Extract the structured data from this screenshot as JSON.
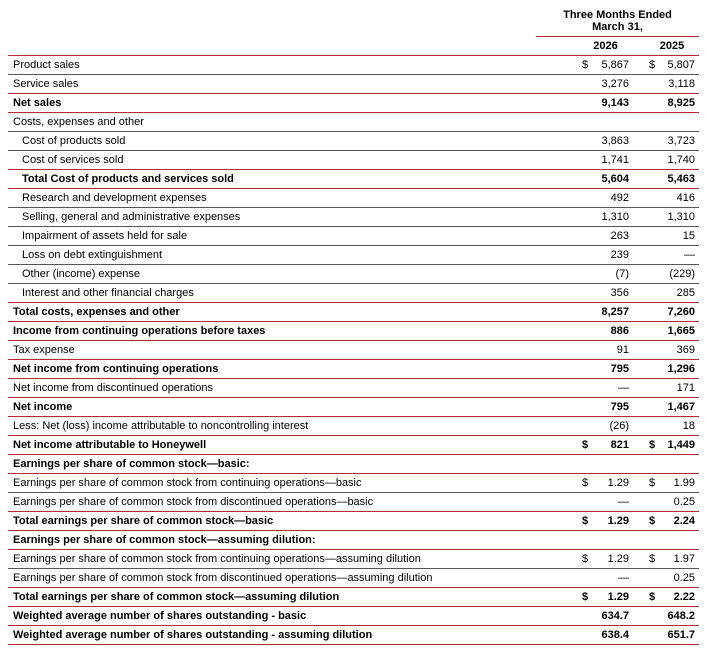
{
  "colors": {
    "accent_red": "#b22d30",
    "line_gray": "#55565a"
  },
  "header": {
    "period_line1": "Three Months Ended",
    "period_line2": "March 31,",
    "years": [
      "2026",
      "2025"
    ]
  },
  "rows": [
    {
      "label": "Product sales",
      "indent": false,
      "bold": false,
      "cur": "$",
      "v1": "5,867",
      "v2": "5,807",
      "border": "gray"
    },
    {
      "label": "Service sales",
      "indent": false,
      "bold": false,
      "cur": "",
      "v1": "3,276",
      "v2": "3,118",
      "border": "red"
    },
    {
      "label": "Net sales",
      "indent": false,
      "bold": true,
      "cur": "",
      "v1": "9,143",
      "v2": "8,925",
      "border": "red"
    },
    {
      "label": "Costs, expenses and other",
      "indent": false,
      "bold": false,
      "cur": "",
      "v1": "",
      "v2": "",
      "border": "gray"
    },
    {
      "label": "Cost of products sold",
      "indent": true,
      "bold": false,
      "cur": "",
      "v1": "3,863",
      "v2": "3,723",
      "border": "gray"
    },
    {
      "label": "Cost of services sold",
      "indent": true,
      "bold": false,
      "cur": "",
      "v1": "1,741",
      "v2": "1,740",
      "border": "red"
    },
    {
      "label": "Total Cost of products and services sold",
      "indent": true,
      "bold": true,
      "cur": "",
      "v1": "5,604",
      "v2": "5,463",
      "border": "red"
    },
    {
      "label": "Research and development expenses",
      "indent": true,
      "bold": false,
      "cur": "",
      "v1": "492",
      "v2": "416",
      "border": "gray"
    },
    {
      "label": "Selling, general and administrative expenses",
      "indent": true,
      "bold": false,
      "cur": "",
      "v1": "1,310",
      "v2": "1,310",
      "border": "gray"
    },
    {
      "label": "Impairment of assets held for sale",
      "indent": true,
      "bold": false,
      "cur": "",
      "v1": "263",
      "v2": "15",
      "border": "gray"
    },
    {
      "label": "Loss on debt extinguishment",
      "indent": true,
      "bold": false,
      "cur": "",
      "v1": "239",
      "v2": "—",
      "border": "gray"
    },
    {
      "label": "Other (income) expense",
      "indent": true,
      "bold": false,
      "cur": "",
      "v1": "(7)",
      "v2": "(229)",
      "border": "gray"
    },
    {
      "label": "Interest and other financial charges",
      "indent": true,
      "bold": false,
      "cur": "",
      "v1": "356",
      "v2": "285",
      "border": "red"
    },
    {
      "label": "Total costs, expenses and other",
      "indent": false,
      "bold": true,
      "cur": "",
      "v1": "8,257",
      "v2": "7,260",
      "border": "red"
    },
    {
      "label": "Income from continuing operations before taxes",
      "indent": false,
      "bold": true,
      "cur": "",
      "v1": "886",
      "v2": "1,665",
      "border": "red"
    },
    {
      "label": "Tax expense",
      "indent": false,
      "bold": false,
      "cur": "",
      "v1": "91",
      "v2": "369",
      "border": "red"
    },
    {
      "label": "Net income from continuing operations",
      "indent": false,
      "bold": true,
      "cur": "",
      "v1": "795",
      "v2": "1,296",
      "border": "red"
    },
    {
      "label": "Net income from discontinued operations",
      "indent": false,
      "bold": false,
      "cur": "",
      "v1": "—",
      "v2": "171",
      "border": "red"
    },
    {
      "label": "Net income",
      "indent": false,
      "bold": true,
      "cur": "",
      "v1": "795",
      "v2": "1,467",
      "border": "red"
    },
    {
      "label": "Less: Net (loss) income attributable to noncontrolling interest",
      "indent": false,
      "bold": false,
      "cur": "",
      "v1": "(26)",
      "v2": "18",
      "border": "red"
    },
    {
      "label": "Net income attributable to Honeywell",
      "indent": false,
      "bold": true,
      "cur": "$",
      "v1": "821",
      "v2": "1,449",
      "border": "red"
    },
    {
      "label": "Earnings per share of common stock—basic:",
      "indent": false,
      "bold": true,
      "cur": "",
      "v1": "",
      "v2": "",
      "border": "red"
    },
    {
      "label": "Earnings per share of common stock from continuing operations—basic",
      "indent": false,
      "bold": false,
      "cur": "$",
      "v1": "1.29",
      "v2": "1.99",
      "border": "gray"
    },
    {
      "label": "Earnings per share of common stock from discontinued operations—basic",
      "indent": false,
      "bold": false,
      "cur": "",
      "v1": "—",
      "v2": "0.25",
      "border": "red"
    },
    {
      "label": "Total earnings per share of common stock—basic",
      "indent": false,
      "bold": true,
      "cur": "$",
      "v1": "1.29",
      "v2": "2.24",
      "border": "red"
    },
    {
      "label": "Earnings per share of common stock—assuming dilution:",
      "indent": false,
      "bold": true,
      "cur": "",
      "v1": "",
      "v2": "",
      "border": "red"
    },
    {
      "label": "Earnings per share of common stock from continuing operations—assuming dilution",
      "indent": false,
      "bold": false,
      "cur": "$",
      "v1": "1.29",
      "v2": "1.97",
      "border": "gray"
    },
    {
      "label": "Earnings per share of common stock from discontinued operations—assuming dilution",
      "indent": false,
      "bold": false,
      "cur": "",
      "v1": "—",
      "v2": "0.25",
      "border": "red"
    },
    {
      "label": "Total earnings per share of common stock—assuming dilution",
      "indent": false,
      "bold": true,
      "cur": "$",
      "v1": "1.29",
      "v2": "2.22",
      "border": "red"
    },
    {
      "label": "Weighted average number of shares outstanding - basic",
      "indent": false,
      "bold": true,
      "cur": "",
      "v1": "634.7",
      "v2": "648.2",
      "border": "red"
    },
    {
      "label": "Weighted average number of shares outstanding - assuming dilution",
      "indent": false,
      "bold": true,
      "cur": "",
      "v1": "638.4",
      "v2": "651.7",
      "border": "red"
    }
  ]
}
